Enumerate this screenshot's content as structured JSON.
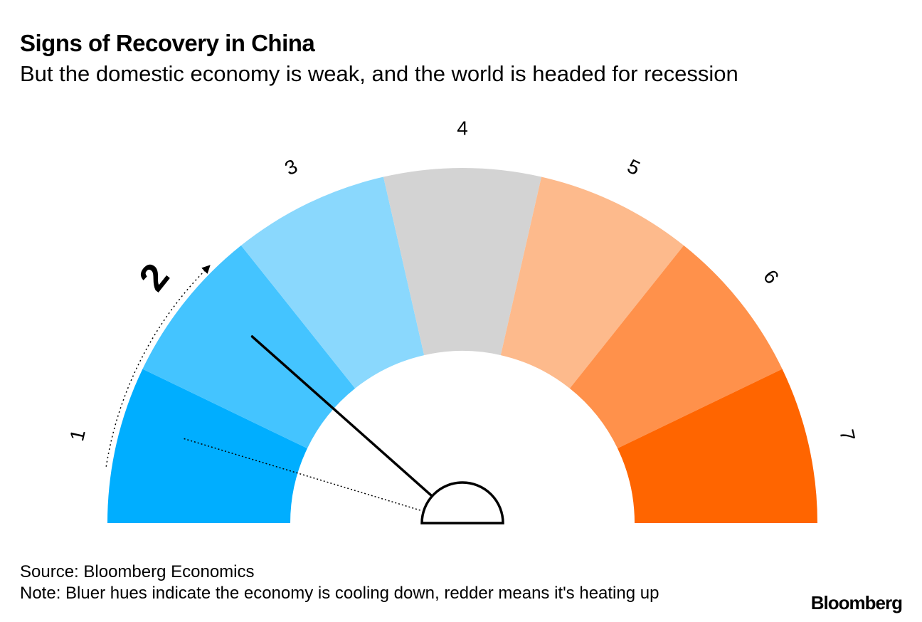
{
  "title": "Signs of Recovery in China",
  "subtitle": "But the domestic economy is weak, and the world is headed for recession",
  "source": "Source: Bloomberg Economics",
  "note": "Note: Bluer hues indicate the economy is cooling down, redder means it's heating up",
  "logo": "Bloomberg",
  "chart_data": {
    "type": "gauge",
    "scale_min": 1,
    "scale_max": 7,
    "segments": [
      {
        "label": "1",
        "color": "#00aeff"
      },
      {
        "label": "2",
        "color": "#44c4ff"
      },
      {
        "label": "3",
        "color": "#8ad8fd"
      },
      {
        "label": "4",
        "color": "#d3d3d3"
      },
      {
        "label": "5",
        "color": "#fdba8c"
      },
      {
        "label": "6",
        "color": "#ff914b"
      },
      {
        "label": "7",
        "color": "#ff6500"
      }
    ],
    "current_value": 2,
    "previous_value": 1,
    "highlighted_label": "2"
  }
}
